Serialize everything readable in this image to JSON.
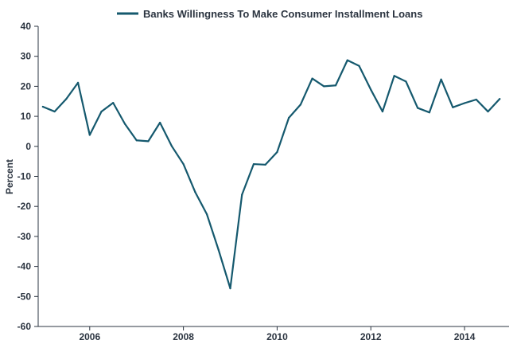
{
  "chart_data": {
    "type": "line",
    "title": "",
    "xlabel": "",
    "ylabel": "Percent",
    "ylim": [
      -60,
      40
    ],
    "yticks": [
      40,
      30,
      20,
      10,
      0,
      -10,
      -20,
      -30,
      -40,
      -50,
      -60
    ],
    "xticks": [
      2006,
      2008,
      2010,
      2012,
      2014
    ],
    "xlim": [
      2004.9,
      2014.95
    ],
    "grid": false,
    "legend_position": "top-center",
    "series": [
      {
        "name": "Banks Willingness To Make Consumer Installment Loans",
        "color": "#15596e",
        "x": [
          2005.0,
          2005.25,
          2005.5,
          2005.75,
          2006.0,
          2006.25,
          2006.5,
          2006.75,
          2007.0,
          2007.25,
          2007.5,
          2007.75,
          2008.0,
          2008.25,
          2008.5,
          2008.75,
          2009.0,
          2009.25,
          2009.5,
          2009.75,
          2010.0,
          2010.25,
          2010.5,
          2010.75,
          2011.0,
          2011.25,
          2011.5,
          2011.75,
          2012.0,
          2012.25,
          2012.5,
          2012.75,
          2013.0,
          2013.25,
          2013.5,
          2013.75,
          2014.0,
          2014.25,
          2014.5,
          2014.75
        ],
        "values": [
          13.2,
          11.6,
          15.8,
          21.2,
          3.8,
          11.6,
          14.5,
          7.5,
          2.0,
          1.7,
          7.9,
          0.1,
          -5.9,
          -15.2,
          -22.6,
          -34.5,
          -47.3,
          -16.1,
          -5.9,
          -6.1,
          -1.9,
          9.5,
          13.9,
          22.6,
          20.0,
          20.3,
          28.7,
          26.8,
          18.9,
          11.6,
          23.5,
          21.6,
          12.8,
          11.3,
          22.3,
          13.0,
          14.4,
          15.6,
          11.6,
          15.8
        ]
      }
    ]
  }
}
